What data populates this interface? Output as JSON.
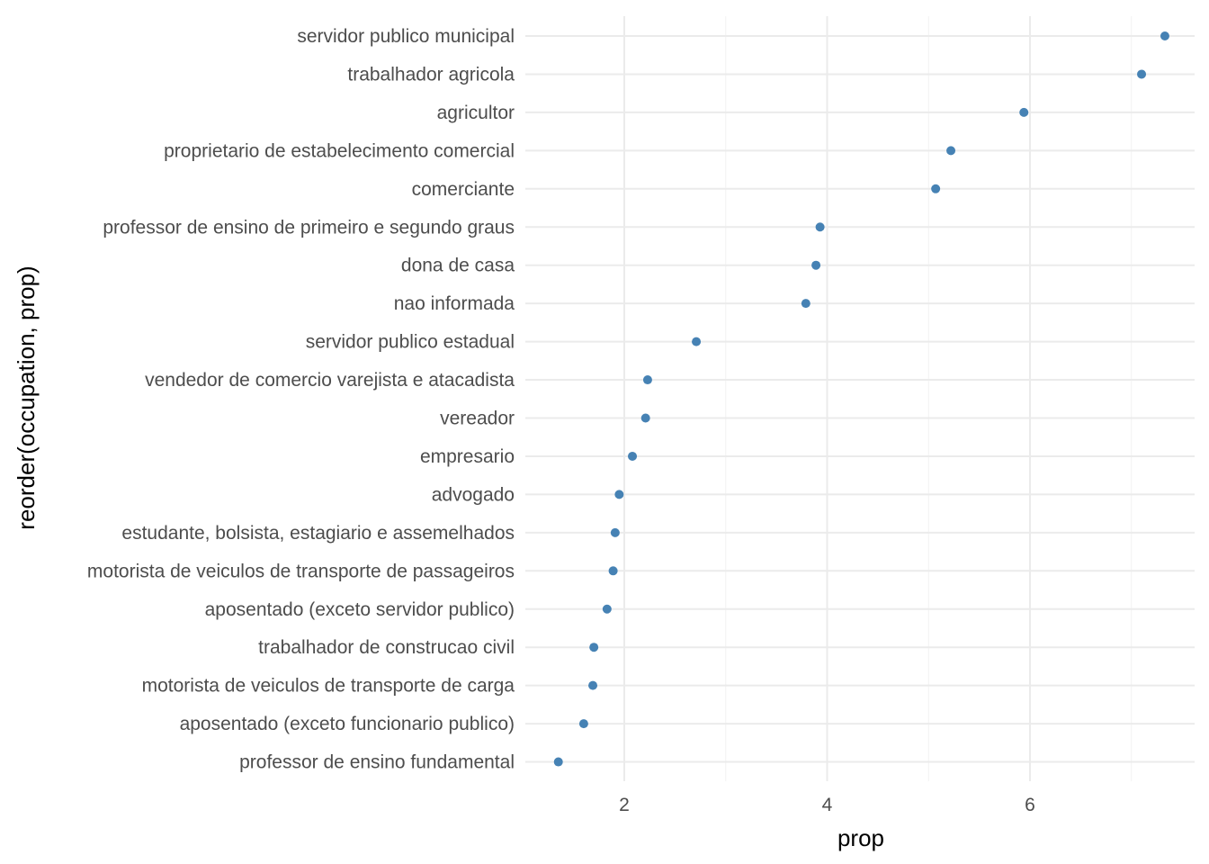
{
  "chart_data": {
    "type": "scatter",
    "title": "",
    "xlabel": "prop",
    "ylabel": "reorder(occupation, prop)",
    "xlim": [
      1.0,
      7.6
    ],
    "x_ticks": [
      2,
      4,
      6
    ],
    "x_tick_labels": [
      "2",
      "4",
      "6"
    ],
    "grid": true,
    "legend": "none",
    "point_color": "#4682B4",
    "categories": [
      "servidor publico municipal",
      "trabalhador agricola",
      "agricultor",
      "proprietario de estabelecimento comercial",
      "comerciante",
      "professor de ensino de primeiro e segundo graus",
      "dona de casa",
      "nao informada",
      "servidor publico estadual",
      "vendedor de comercio varejista e atacadista",
      "vereador",
      "empresario",
      "advogado",
      "estudante, bolsista, estagiario e assemelhados",
      "motorista de veiculos de transporte de passageiros",
      "aposentado (exceto servidor publico)",
      "trabalhador de construcao civil",
      "motorista de veiculos de transporte de carga",
      "aposentado (exceto funcionario publico)",
      "professor de ensino fundamental"
    ],
    "values": [
      7.33,
      7.1,
      5.94,
      5.22,
      5.07,
      3.93,
      3.89,
      3.79,
      2.71,
      2.23,
      2.21,
      2.08,
      1.95,
      1.91,
      1.89,
      1.83,
      1.7,
      1.69,
      1.6,
      1.35
    ]
  }
}
